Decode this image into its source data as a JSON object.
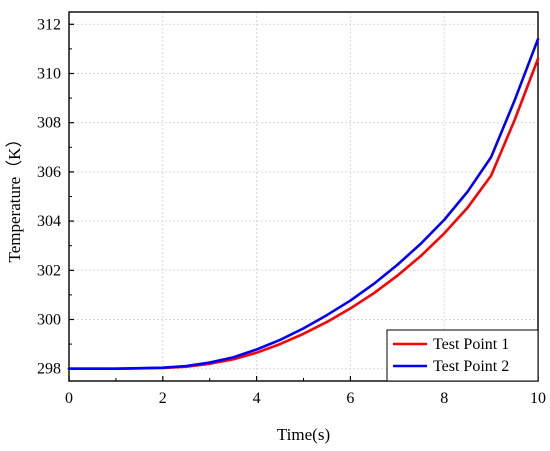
{
  "chart_data": {
    "type": "line",
    "title": "",
    "xlabel": "Time(s)",
    "ylabel": "Temperature（K）",
    "xlim": [
      0,
      10
    ],
    "ylim": [
      297.5,
      312.5
    ],
    "xticks": [
      0,
      2,
      4,
      6,
      8,
      10
    ],
    "yticks": [
      298,
      300,
      302,
      304,
      306,
      308,
      310,
      312
    ],
    "grid": true,
    "legend_position": "bottom-right",
    "series": [
      {
        "name": "Test Point 1",
        "color": "#ff0000",
        "x": [
          0,
          1,
          2,
          2.5,
          3,
          3.5,
          4,
          4.5,
          5,
          5.5,
          6,
          6.5,
          7,
          7.5,
          8,
          8.5,
          9,
          9.5,
          10
        ],
        "y": [
          298.0,
          298.0,
          298.03,
          298.08,
          298.2,
          298.38,
          298.65,
          299.0,
          299.42,
          299.9,
          300.45,
          301.07,
          301.78,
          302.58,
          303.5,
          304.55,
          305.85,
          308.1,
          310.6
        ]
      },
      {
        "name": "Test Point 2",
        "color": "#0000ff",
        "x": [
          0,
          1,
          2,
          2.5,
          3,
          3.5,
          4,
          4.5,
          5,
          5.5,
          6,
          6.5,
          7,
          7.5,
          8,
          8.5,
          9,
          9.5,
          10
        ],
        "y": [
          298.0,
          298.0,
          298.04,
          298.11,
          298.25,
          298.46,
          298.78,
          299.17,
          299.64,
          300.18,
          300.77,
          301.45,
          302.22,
          303.08,
          304.05,
          305.2,
          306.6,
          308.9,
          311.4
        ]
      }
    ]
  }
}
